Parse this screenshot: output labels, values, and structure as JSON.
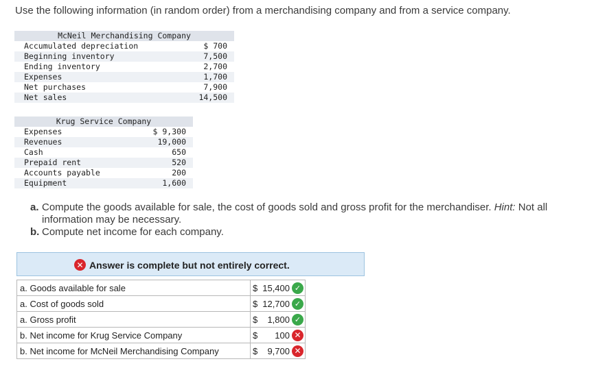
{
  "intro": "Use the following information (in random order) from a merchandising company and from a service company.",
  "mcneil": {
    "title": "McNeil Merchandising Company",
    "rows": [
      {
        "name": "Accumulated depreciation",
        "amount": "$ 700"
      },
      {
        "name": "Beginning inventory",
        "amount": "7,500"
      },
      {
        "name": "Ending inventory",
        "amount": "2,700"
      },
      {
        "name": "Expenses",
        "amount": "1,700"
      },
      {
        "name": "Net purchases",
        "amount": "7,900"
      },
      {
        "name": "Net sales",
        "amount": "14,500"
      }
    ]
  },
  "krug": {
    "title": "Krug Service Company",
    "rows": [
      {
        "name": "Expenses",
        "amount": "$ 9,300"
      },
      {
        "name": "Revenues",
        "amount": "19,000"
      },
      {
        "name": "Cash",
        "amount": "650"
      },
      {
        "name": "Prepaid rent",
        "amount": "520"
      },
      {
        "name": "Accounts payable",
        "amount": "200"
      },
      {
        "name": "Equipment",
        "amount": "1,600"
      }
    ]
  },
  "questions": {
    "a_label": "a.",
    "a_text_1": "Compute the goods available for sale, the cost of goods sold and gross profit for the merchandiser.",
    "a_hint": "Hint:",
    "a_text_2": "Not all information may be necessary.",
    "b_label": "b.",
    "b_text": "Compute net income for each company."
  },
  "banner": {
    "message": "Answer is complete but not entirely correct.",
    "icon": "x-circle-icon"
  },
  "answers": [
    {
      "label": "a. Goods available for sale",
      "currency": "$",
      "value": "15,400",
      "status": "correct"
    },
    {
      "label": "a. Cost of goods sold",
      "currency": "$",
      "value": "12,700",
      "status": "correct"
    },
    {
      "label": "a. Gross profit",
      "currency": "$",
      "value": "1,800",
      "status": "correct"
    },
    {
      "label": "b. Net income for Krug Service Company",
      "currency": "$",
      "value": "100",
      "status": "incorrect"
    },
    {
      "label": "b. Net income for McNeil Merchandising Company",
      "currency": "$",
      "value": "9,700",
      "status": "incorrect"
    }
  ],
  "colors": {
    "correct": "#3aa84a",
    "incorrect": "#d9262c",
    "banner_bg": "#dbeaf7"
  }
}
